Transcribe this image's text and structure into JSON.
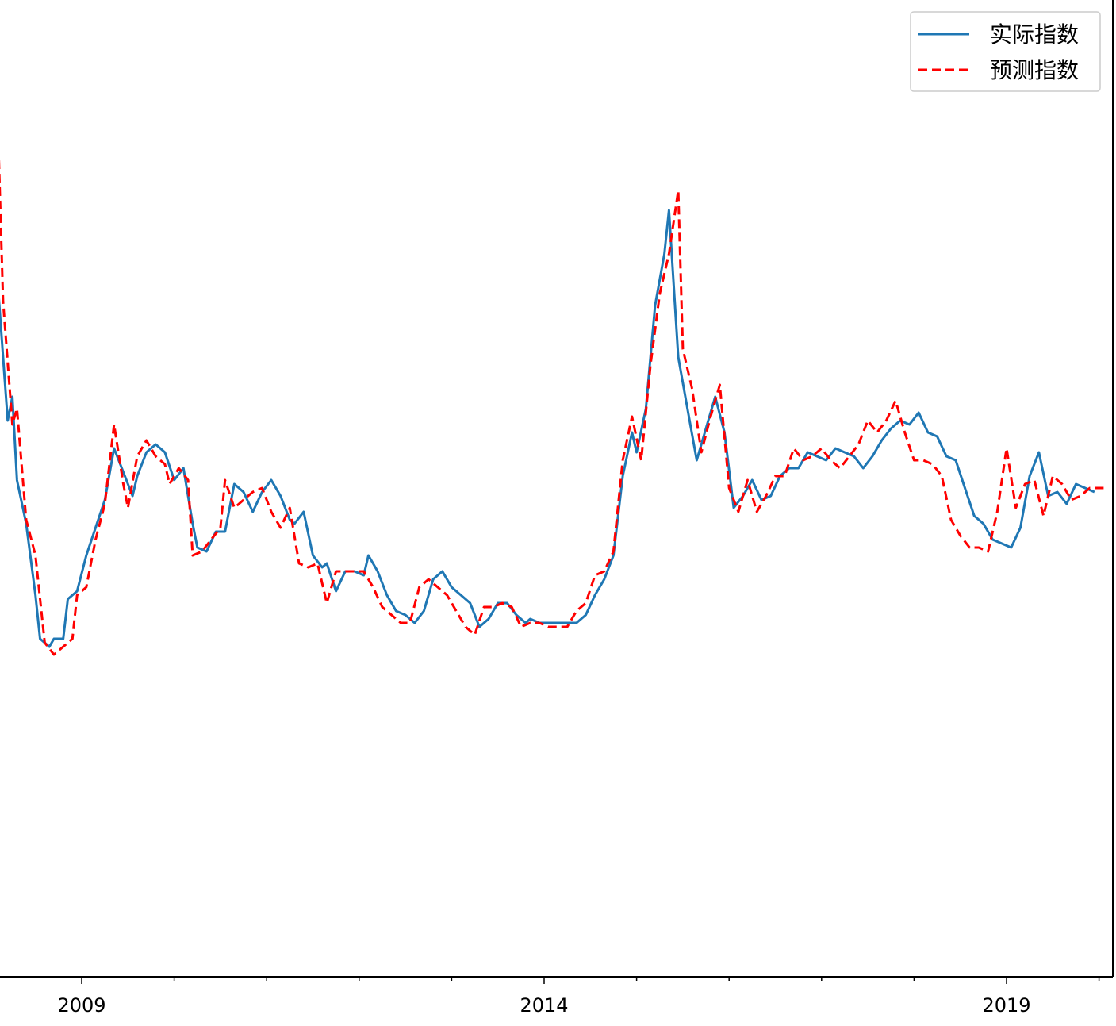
{
  "chart_data": {
    "type": "line",
    "title": "",
    "xlabel": "",
    "ylabel": "",
    "x_tick_labels": [
      "2009",
      "2014",
      "2019"
    ],
    "x_range": [
      2008.1,
      2020.1
    ],
    "y_range": [
      0,
      1235
    ],
    "grid": false,
    "legend_position": "top-right",
    "colors": {
      "actual": "#1f77b4",
      "predicted": "#ff0000"
    },
    "series": [
      {
        "name": "实际指数",
        "style": "solid",
        "points": [
          [
            2008.1,
            370
          ],
          [
            2008.2,
            530
          ],
          [
            2008.25,
            500
          ],
          [
            2008.3,
            605
          ],
          [
            2008.4,
            660
          ],
          [
            2008.5,
            750
          ],
          [
            2008.55,
            805
          ],
          [
            2008.65,
            815
          ],
          [
            2008.7,
            805
          ],
          [
            2008.8,
            805
          ],
          [
            2008.85,
            755
          ],
          [
            2008.95,
            745
          ],
          [
            2009.05,
            700
          ],
          [
            2009.15,
            665
          ],
          [
            2009.25,
            630
          ],
          [
            2009.35,
            565
          ],
          [
            2009.45,
            595
          ],
          [
            2009.55,
            625
          ],
          [
            2009.6,
            600
          ],
          [
            2009.7,
            570
          ],
          [
            2009.8,
            560
          ],
          [
            2009.9,
            570
          ],
          [
            2010.0,
            605
          ],
          [
            2010.1,
            590
          ],
          [
            2010.2,
            660
          ],
          [
            2010.25,
            690
          ],
          [
            2010.35,
            695
          ],
          [
            2010.45,
            670
          ],
          [
            2010.55,
            670
          ],
          [
            2010.65,
            610
          ],
          [
            2010.75,
            620
          ],
          [
            2010.85,
            645
          ],
          [
            2010.95,
            620
          ],
          [
            2011.05,
            605
          ],
          [
            2011.15,
            625
          ],
          [
            2011.25,
            655
          ],
          [
            2011.3,
            660
          ],
          [
            2011.4,
            645
          ],
          [
            2011.5,
            700
          ],
          [
            2011.6,
            715
          ],
          [
            2011.65,
            710
          ],
          [
            2011.75,
            745
          ],
          [
            2011.85,
            720
          ],
          [
            2011.95,
            720
          ],
          [
            2012.05,
            725
          ],
          [
            2012.1,
            700
          ],
          [
            2012.2,
            720
          ],
          [
            2012.3,
            750
          ],
          [
            2012.4,
            770
          ],
          [
            2012.5,
            775
          ],
          [
            2012.6,
            785
          ],
          [
            2012.7,
            770
          ],
          [
            2012.8,
            730
          ],
          [
            2012.9,
            720
          ],
          [
            2013.0,
            740
          ],
          [
            2013.1,
            750
          ],
          [
            2013.2,
            760
          ],
          [
            2013.3,
            790
          ],
          [
            2013.4,
            780
          ],
          [
            2013.5,
            760
          ],
          [
            2013.6,
            760
          ],
          [
            2013.7,
            775
          ],
          [
            2013.8,
            785
          ],
          [
            2013.85,
            780
          ],
          [
            2013.95,
            785
          ],
          [
            2014.05,
            785
          ],
          [
            2014.15,
            785
          ],
          [
            2014.25,
            785
          ],
          [
            2014.35,
            785
          ],
          [
            2014.45,
            775
          ],
          [
            2014.55,
            750
          ],
          [
            2014.65,
            730
          ],
          [
            2014.75,
            700
          ],
          [
            2014.85,
            600
          ],
          [
            2014.95,
            545
          ],
          [
            2015.0,
            570
          ],
          [
            2015.1,
            515
          ],
          [
            2015.2,
            385
          ],
          [
            2015.3,
            320
          ],
          [
            2015.35,
            265
          ],
          [
            2015.45,
            450
          ],
          [
            2015.55,
            515
          ],
          [
            2015.65,
            580
          ],
          [
            2015.75,
            540
          ],
          [
            2015.85,
            500
          ],
          [
            2015.95,
            545
          ],
          [
            2016.05,
            640
          ],
          [
            2016.15,
            625
          ],
          [
            2016.25,
            605
          ],
          [
            2016.35,
            630
          ],
          [
            2016.45,
            625
          ],
          [
            2016.55,
            600
          ],
          [
            2016.65,
            590
          ],
          [
            2016.75,
            590
          ],
          [
            2016.85,
            570
          ],
          [
            2016.95,
            575
          ],
          [
            2017.05,
            580
          ],
          [
            2017.15,
            565
          ],
          [
            2017.25,
            570
          ],
          [
            2017.35,
            575
          ],
          [
            2017.45,
            590
          ],
          [
            2017.55,
            575
          ],
          [
            2017.65,
            555
          ],
          [
            2017.75,
            540
          ],
          [
            2017.85,
            530
          ],
          [
            2017.95,
            535
          ],
          [
            2018.05,
            520
          ],
          [
            2018.15,
            545
          ],
          [
            2018.25,
            550
          ],
          [
            2018.35,
            575
          ],
          [
            2018.45,
            580
          ],
          [
            2018.55,
            615
          ],
          [
            2018.65,
            650
          ],
          [
            2018.75,
            660
          ],
          [
            2018.85,
            680
          ],
          [
            2018.95,
            685
          ],
          [
            2019.05,
            690
          ],
          [
            2019.15,
            665
          ],
          [
            2019.25,
            600
          ],
          [
            2019.35,
            570
          ],
          [
            2019.45,
            625
          ],
          [
            2019.55,
            620
          ],
          [
            2019.65,
            635
          ],
          [
            2019.75,
            610
          ],
          [
            2019.85,
            615
          ],
          [
            2019.95,
            620
          ]
        ]
      },
      {
        "name": "预测指数",
        "style": "dashed",
        "points": [
          [
            2008.1,
            185
          ],
          [
            2008.15,
            380
          ],
          [
            2008.25,
            535
          ],
          [
            2008.3,
            515
          ],
          [
            2008.4,
            655
          ],
          [
            2008.5,
            700
          ],
          [
            2008.6,
            810
          ],
          [
            2008.7,
            825
          ],
          [
            2008.8,
            815
          ],
          [
            2008.9,
            805
          ],
          [
            2008.95,
            750
          ],
          [
            2009.05,
            740
          ],
          [
            2009.15,
            680
          ],
          [
            2009.25,
            635
          ],
          [
            2009.35,
            535
          ],
          [
            2009.45,
            610
          ],
          [
            2009.5,
            640
          ],
          [
            2009.6,
            575
          ],
          [
            2009.7,
            555
          ],
          [
            2009.8,
            575
          ],
          [
            2009.9,
            585
          ],
          [
            2009.95,
            610
          ],
          [
            2010.05,
            590
          ],
          [
            2010.15,
            605
          ],
          [
            2010.2,
            700
          ],
          [
            2010.3,
            695
          ],
          [
            2010.4,
            680
          ],
          [
            2010.5,
            665
          ],
          [
            2010.55,
            605
          ],
          [
            2010.65,
            640
          ],
          [
            2010.75,
            630
          ],
          [
            2010.85,
            620
          ],
          [
            2010.95,
            615
          ],
          [
            2011.05,
            645
          ],
          [
            2011.15,
            665
          ],
          [
            2011.25,
            640
          ],
          [
            2011.35,
            710
          ],
          [
            2011.45,
            715
          ],
          [
            2011.55,
            710
          ],
          [
            2011.65,
            760
          ],
          [
            2011.75,
            720
          ],
          [
            2011.85,
            720
          ],
          [
            2011.95,
            720
          ],
          [
            2012.05,
            720
          ],
          [
            2012.15,
            740
          ],
          [
            2012.25,
            765
          ],
          [
            2012.35,
            775
          ],
          [
            2012.45,
            785
          ],
          [
            2012.55,
            785
          ],
          [
            2012.65,
            740
          ],
          [
            2012.75,
            730
          ],
          [
            2012.85,
            740
          ],
          [
            2012.95,
            750
          ],
          [
            2013.05,
            770
          ],
          [
            2013.15,
            790
          ],
          [
            2013.25,
            800
          ],
          [
            2013.35,
            765
          ],
          [
            2013.45,
            765
          ],
          [
            2013.55,
            760
          ],
          [
            2013.65,
            765
          ],
          [
            2013.75,
            790
          ],
          [
            2013.85,
            785
          ],
          [
            2013.95,
            785
          ],
          [
            2014.05,
            790
          ],
          [
            2014.15,
            790
          ],
          [
            2014.25,
            790
          ],
          [
            2014.35,
            770
          ],
          [
            2014.45,
            760
          ],
          [
            2014.55,
            725
          ],
          [
            2014.65,
            720
          ],
          [
            2014.75,
            695
          ],
          [
            2014.85,
            580
          ],
          [
            2014.95,
            525
          ],
          [
            2015.05,
            580
          ],
          [
            2015.15,
            460
          ],
          [
            2015.25,
            370
          ],
          [
            2015.35,
            320
          ],
          [
            2015.45,
            240
          ],
          [
            2015.5,
            440
          ],
          [
            2015.6,
            490
          ],
          [
            2015.7,
            570
          ],
          [
            2015.8,
            525
          ],
          [
            2015.9,
            485
          ],
          [
            2016.0,
            615
          ],
          [
            2016.1,
            645
          ],
          [
            2016.2,
            605
          ],
          [
            2016.3,
            645
          ],
          [
            2016.4,
            625
          ],
          [
            2016.5,
            600
          ],
          [
            2016.6,
            600
          ],
          [
            2016.7,
            565
          ],
          [
            2016.8,
            580
          ],
          [
            2016.9,
            575
          ],
          [
            2017.0,
            565
          ],
          [
            2017.1,
            580
          ],
          [
            2017.2,
            590
          ],
          [
            2017.3,
            575
          ],
          [
            2017.4,
            560
          ],
          [
            2017.5,
            530
          ],
          [
            2017.6,
            545
          ],
          [
            2017.7,
            530
          ],
          [
            2017.8,
            505
          ],
          [
            2017.9,
            545
          ],
          [
            2018.0,
            580
          ],
          [
            2018.1,
            580
          ],
          [
            2018.2,
            585
          ],
          [
            2018.3,
            600
          ],
          [
            2018.4,
            655
          ],
          [
            2018.5,
            675
          ],
          [
            2018.6,
            690
          ],
          [
            2018.7,
            690
          ],
          [
            2018.8,
            695
          ],
          [
            2018.9,
            645
          ],
          [
            2019.0,
            565
          ],
          [
            2019.1,
            640
          ],
          [
            2019.2,
            610
          ],
          [
            2019.3,
            605
          ],
          [
            2019.4,
            650
          ],
          [
            2019.5,
            600
          ],
          [
            2019.6,
            610
          ],
          [
            2019.7,
            630
          ],
          [
            2019.8,
            625
          ],
          [
            2019.9,
            615
          ],
          [
            2020.0,
            615
          ],
          [
            2020.1,
            615
          ]
        ]
      }
    ]
  }
}
